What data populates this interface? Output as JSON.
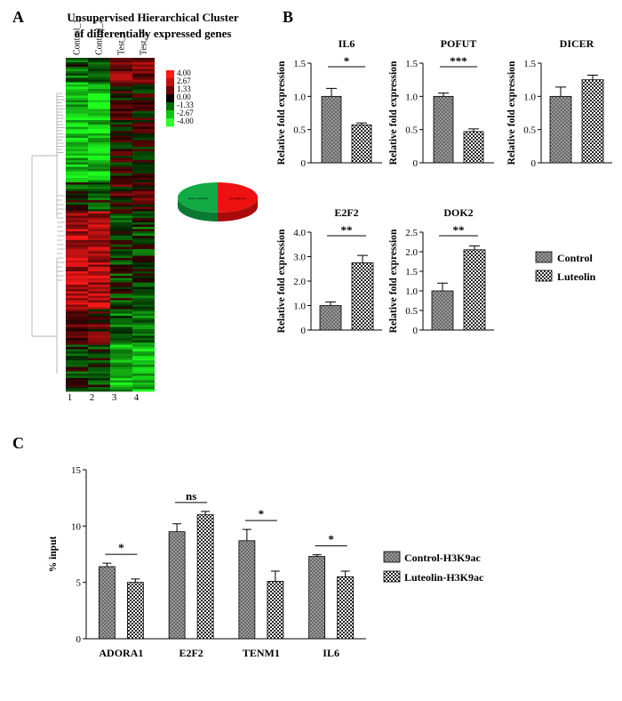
{
  "panels": {
    "a": "A",
    "b": "B",
    "c": "C"
  },
  "heatmap": {
    "title_line1": "Unsupervised Hierarchical Cluster",
    "title_line2": "of differentially expressed genes",
    "columns": [
      "Control_1",
      "Control_2",
      "Test_1",
      "Test_2"
    ],
    "lanes": [
      "1",
      "2",
      "3",
      "4"
    ],
    "scale": [
      "4.00",
      "2.67",
      "1.33",
      "0.00",
      "-1.33",
      "-2.67",
      "-4.00"
    ],
    "scale_colors": [
      "#ff1a1a",
      "#c40f0f",
      "#6a0606",
      "#000000",
      "#0a6a0a",
      "#12c412",
      "#2cff2c"
    ],
    "pie": {
      "slices": [
        {
          "label": "Up-regulated",
          "percent": 50,
          "color": "#ee1111"
        },
        {
          "label": "Down-regulated",
          "percent": 50,
          "color": "#11aa44"
        }
      ]
    }
  },
  "colors": {
    "control": "#909090",
    "treated_fill": "checkered",
    "bar_edge": "#000000"
  },
  "ylabel_b": "Relative fold expression",
  "legend_b": [
    "Control",
    "Luteolin"
  ],
  "legend_c": [
    "Control-H3K9ac",
    "Luteolin-H3K9ac"
  ],
  "chart_data": [
    {
      "type": "bar",
      "title": "IL6",
      "ylabel": "Relative fold expression",
      "categories": [
        "Control",
        "Luteolin"
      ],
      "values": [
        1.0,
        0.57
      ],
      "errors": [
        0.12,
        0.03
      ],
      "ylim": [
        0,
        1.5
      ],
      "yticks": [
        "0",
        "0.5",
        "1.0",
        "1.5"
      ],
      "significance": "*"
    },
    {
      "type": "bar",
      "title": "POFUT",
      "ylabel": "Relative fold expression",
      "categories": [
        "Control",
        "Luteolin"
      ],
      "values": [
        1.0,
        0.47
      ],
      "errors": [
        0.05,
        0.04
      ],
      "ylim": [
        0,
        1.5
      ],
      "yticks": [
        "0",
        "0.5",
        "1.0",
        "1.5"
      ],
      "significance": "***"
    },
    {
      "type": "bar",
      "title": "DICER",
      "ylabel": "Relative fold expression",
      "categories": [
        "Control",
        "Luteolin"
      ],
      "values": [
        1.0,
        1.25
      ],
      "errors": [
        0.14,
        0.07
      ],
      "ylim": [
        0,
        1.5
      ],
      "yticks": [
        "0",
        "0.5",
        "1.0",
        "1.5"
      ],
      "significance": ""
    },
    {
      "type": "bar",
      "title": "E2F2",
      "ylabel": "Relative fold expression",
      "categories": [
        "Control",
        "Luteolin"
      ],
      "values": [
        1.0,
        2.75
      ],
      "errors": [
        0.15,
        0.3
      ],
      "ylim": [
        0,
        4.0
      ],
      "yticks": [
        "0",
        "1.0",
        "2.0",
        "3.0",
        "4.0"
      ],
      "significance": "**"
    },
    {
      "type": "bar",
      "title": "DOK2",
      "ylabel": "Relative fold expression",
      "categories": [
        "Control",
        "Luteolin"
      ],
      "values": [
        1.0,
        2.05
      ],
      "errors": [
        0.2,
        0.1
      ],
      "ylim": [
        0,
        2.5
      ],
      "yticks": [
        "0",
        "0.5",
        "1.0",
        "1.5",
        "2.0",
        "2.5"
      ],
      "significance": "**"
    },
    {
      "type": "bar",
      "title": "",
      "ylabel": "% input",
      "xlabel": "",
      "categories": [
        "ADORA1",
        "E2F2",
        "TENM1",
        "IL6"
      ],
      "series": [
        {
          "name": "Control-H3K9ac",
          "values": [
            6.4,
            9.5,
            8.7,
            7.3
          ],
          "errors": [
            0.3,
            0.7,
            1.0,
            0.15
          ]
        },
        {
          "name": "Luteolin-H3K9ac",
          "values": [
            5.0,
            11.0,
            5.1,
            5.5
          ],
          "errors": [
            0.3,
            0.3,
            0.9,
            0.5
          ]
        }
      ],
      "ylim": [
        0,
        15
      ],
      "yticks": [
        "0",
        "5",
        "10",
        "15"
      ],
      "significance": [
        "*",
        "ns",
        "*",
        "*"
      ]
    }
  ]
}
